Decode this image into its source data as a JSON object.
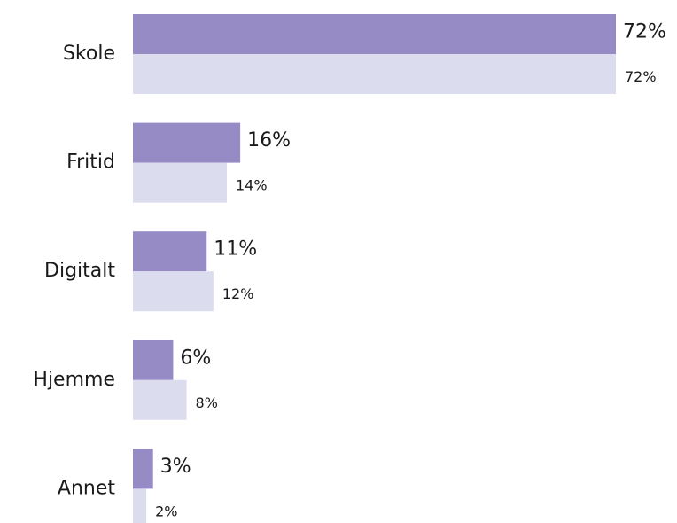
{
  "chart_data": {
    "type": "bar",
    "orientation": "horizontal",
    "categories": [
      "Skole",
      "Fritid",
      "Digitalt",
      "Hjemme",
      "Annet"
    ],
    "series": [
      {
        "color": "#968bc4",
        "values": [
          72,
          16,
          11,
          6,
          3
        ],
        "value_labels": [
          "72%",
          "16%",
          "11%",
          "6%",
          "3%"
        ]
      },
      {
        "color": "#dcdcef",
        "values": [
          72,
          14,
          12,
          8,
          2
        ],
        "value_labels": [
          "72%",
          "14%",
          "12%",
          "8%",
          "2%"
        ]
      }
    ]
  }
}
